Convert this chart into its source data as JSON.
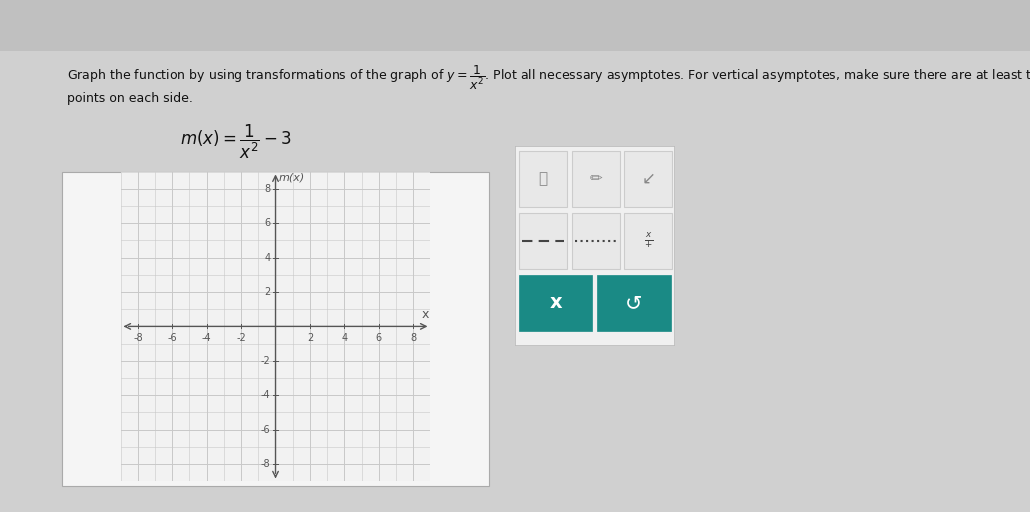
{
  "xlabel": "x",
  "ylabel": "m(x)",
  "xlim": [
    -9,
    9
  ],
  "ylim": [
    -9,
    9
  ],
  "xticks": [
    -8,
    -6,
    -4,
    -2,
    2,
    4,
    6,
    8
  ],
  "yticks": [
    -8,
    -6,
    -4,
    -2,
    2,
    4,
    6,
    8
  ],
  "grid_color": "#c8c8c8",
  "axis_color": "#555555",
  "graph_bg": "#f2f2f2",
  "fig_bg": "#c8c8c8",
  "outer_bg": "#c8c8c8",
  "text_color": "#111111",
  "tick_label_color": "#555555",
  "tick_fontsize": 7,
  "axis_label_fontsize": 9,
  "teal_color": "#1a8a85",
  "panel_bg": "#f0f0f0",
  "btn_bg": "#e4e4e4",
  "graph_border": "#aaaaaa",
  "line1": "Graph the function by using transformations of the graph of $y=\\dfrac{1}{x^2}$. Plot all necessary asymptotes. For vertical asymptotes, make sure there are at least two",
  "line2": "points on each side.",
  "formula": "$m(x)=\\dfrac{1}{x^2}-3$"
}
